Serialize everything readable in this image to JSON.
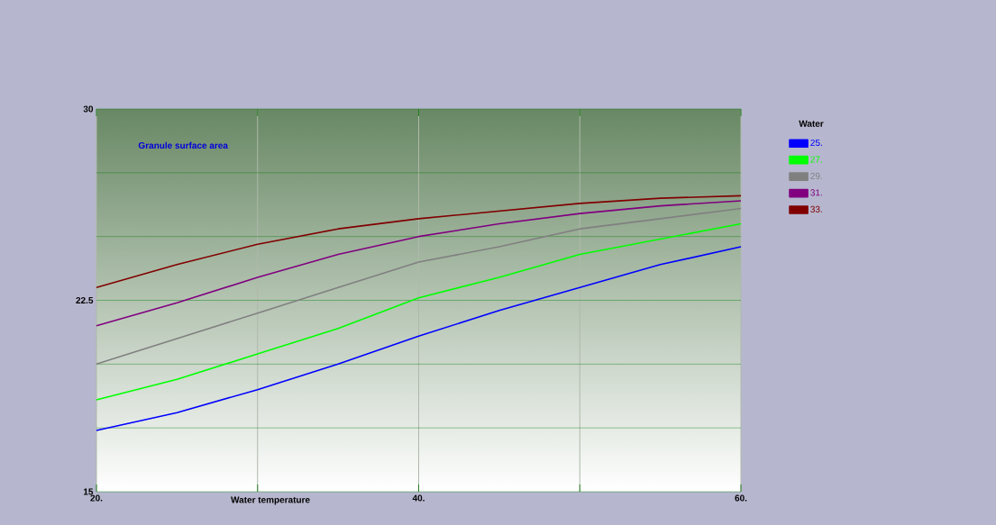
{
  "chart_data": {
    "type": "line",
    "title": "Granule surface area",
    "xlabel": "Water temperature",
    "legend_title": "Water",
    "x": [
      20,
      25,
      30,
      35,
      40,
      45,
      50,
      55,
      60
    ],
    "series": [
      {
        "name": "25.",
        "color": "#0000ff",
        "values": [
          17.4,
          18.1,
          19.0,
          20.0,
          21.1,
          22.1,
          23.0,
          23.9,
          24.6
        ]
      },
      {
        "name": "27.",
        "color": "#00ff00",
        "values": [
          18.6,
          19.4,
          20.4,
          21.4,
          22.6,
          23.4,
          24.3,
          24.9,
          25.5
        ]
      },
      {
        "name": "29.",
        "color": "#808080",
        "values": [
          20.0,
          21.0,
          22.0,
          23.0,
          24.0,
          24.6,
          25.3,
          25.7,
          26.1
        ]
      },
      {
        "name": "31.",
        "color": "#800080",
        "values": [
          21.5,
          22.4,
          23.4,
          24.3,
          25.0,
          25.5,
          25.9,
          26.2,
          26.4
        ]
      },
      {
        "name": "33.",
        "color": "#800000",
        "values": [
          23.0,
          23.9,
          24.7,
          25.3,
          25.7,
          26.0,
          26.3,
          26.5,
          26.6
        ]
      }
    ],
    "xlim": [
      20,
      60
    ],
    "ylim": [
      15,
      30
    ],
    "xticks": [
      {
        "value": 20,
        "label": "20."
      },
      {
        "value": 30,
        "label": null
      },
      {
        "value": 40,
        "label": "40."
      },
      {
        "value": 50,
        "label": null
      },
      {
        "value": 60,
        "label": "60."
      }
    ],
    "yticks": [
      15,
      {
        "value": 17.5,
        "label": null
      },
      {
        "value": 20,
        "label": null
      },
      22.5,
      {
        "value": 25,
        "label": null
      },
      {
        "value": 27.5,
        "label": null
      },
      30
    ],
    "grid": true,
    "legend": "right",
    "marker": "none",
    "line_style": "solid"
  }
}
